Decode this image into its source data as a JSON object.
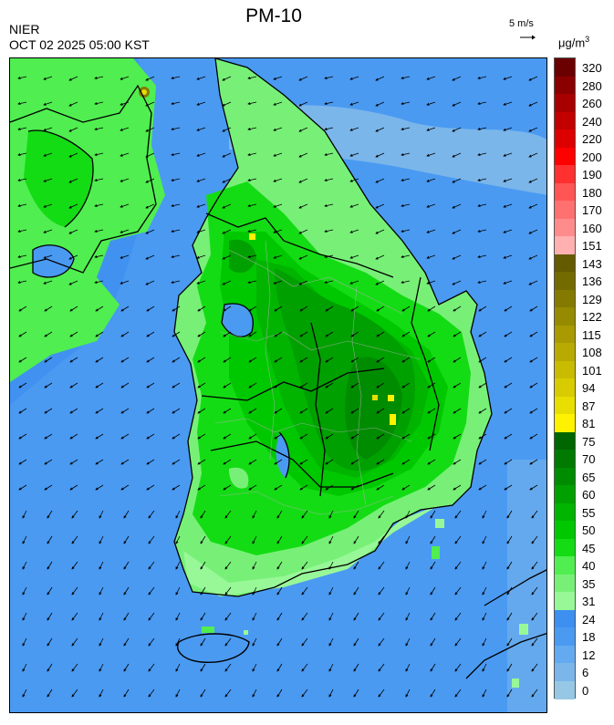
{
  "header": {
    "title": "PM-10",
    "agency": "NIER",
    "timestamp": "OCT 02 2025 05:00 KST",
    "wind_reference": "5 m/s",
    "unit_main": "μg/m",
    "unit_sup": "3"
  },
  "legend": [
    {
      "label": "320",
      "color": "#6b0000"
    },
    {
      "label": "280",
      "color": "#8a0000"
    },
    {
      "label": "260",
      "color": "#a80000"
    },
    {
      "label": "240",
      "color": "#c20000"
    },
    {
      "label": "220",
      "color": "#dd0000"
    },
    {
      "label": "200",
      "color": "#ff0000"
    },
    {
      "label": "190",
      "color": "#ff3030"
    },
    {
      "label": "180",
      "color": "#ff5555"
    },
    {
      "label": "170",
      "color": "#ff7070"
    },
    {
      "label": "160",
      "color": "#ff8c8c"
    },
    {
      "label": "151",
      "color": "#ffb0b0"
    },
    {
      "label": "143",
      "color": "#645a00"
    },
    {
      "label": "136",
      "color": "#736a00"
    },
    {
      "label": "129",
      "color": "#857a00"
    },
    {
      "label": "122",
      "color": "#968a00"
    },
    {
      "label": "115",
      "color": "#a89a00"
    },
    {
      "label": "108",
      "color": "#b8aa00"
    },
    {
      "label": "101",
      "color": "#c8bb00"
    },
    {
      "label": "94",
      "color": "#d8cc00"
    },
    {
      "label": "87",
      "color": "#e8de00"
    },
    {
      "label": "81",
      "color": "#fff200"
    },
    {
      "label": "75",
      "color": "#006600"
    },
    {
      "label": "70",
      "color": "#007a00"
    },
    {
      "label": "65",
      "color": "#008c00"
    },
    {
      "label": "60",
      "color": "#00a000"
    },
    {
      "label": "55",
      "color": "#00b400"
    },
    {
      "label": "50",
      "color": "#00c800"
    },
    {
      "label": "45",
      "color": "#14dc14"
    },
    {
      "label": "40",
      "color": "#50ee50"
    },
    {
      "label": "35",
      "color": "#78f078"
    },
    {
      "label": "31",
      "color": "#98f898"
    },
    {
      "label": "24",
      "color": "#3d8ff0"
    },
    {
      "label": "18",
      "color": "#4a9af2"
    },
    {
      "label": "12",
      "color": "#63aaf0"
    },
    {
      "label": "6",
      "color": "#7ab6ea"
    },
    {
      "label": "0",
      "color": "#96c8e6"
    }
  ]
}
